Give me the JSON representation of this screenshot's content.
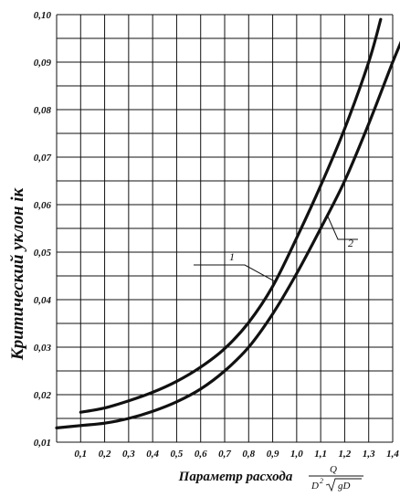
{
  "chart_data": {
    "type": "line",
    "title": "",
    "ylabel": "Критический уклон iк",
    "xlabel": "Параметр расхода",
    "xlabel_formula": {
      "numerator": "Q",
      "denominator_prefix": "D",
      "exponent": "2",
      "radicand": "gD"
    },
    "xlim": [
      0.0,
      1.4
    ],
    "ylim": [
      0.01,
      0.1
    ],
    "x_ticks": [
      "0,1",
      "0,2",
      "0,3",
      "0,4",
      "0,5",
      "0,6",
      "0,7",
      "0,8",
      "0,9",
      "1,0",
      "1,1",
      "1,2",
      "1,3",
      "1,4"
    ],
    "y_ticks": [
      "0,01",
      "0,02",
      "0,03",
      "0,04",
      "0,05",
      "0,06",
      "0,07",
      "0,08",
      "0,09",
      "0,10"
    ],
    "grid": true,
    "series": [
      {
        "name": "1",
        "x": [
          0.1,
          0.2,
          0.3,
          0.4,
          0.5,
          0.6,
          0.7,
          0.8,
          0.9,
          1.0,
          1.1,
          1.2,
          1.3,
          1.35
        ],
        "y": [
          0.0163,
          0.0172,
          0.0187,
          0.0205,
          0.0228,
          0.0258,
          0.0297,
          0.0352,
          0.0428,
          0.053,
          0.064,
          0.076,
          0.09,
          0.099
        ]
      },
      {
        "name": "2",
        "x": [
          0.0,
          0.1,
          0.2,
          0.3,
          0.4,
          0.5,
          0.6,
          0.7,
          0.8,
          0.9,
          1.0,
          1.1,
          1.2,
          1.3,
          1.4,
          1.45
        ],
        "y": [
          0.013,
          0.0135,
          0.014,
          0.015,
          0.0165,
          0.0185,
          0.0212,
          0.025,
          0.03,
          0.037,
          0.0455,
          0.055,
          0.065,
          0.077,
          0.09,
          0.096
        ]
      }
    ]
  }
}
